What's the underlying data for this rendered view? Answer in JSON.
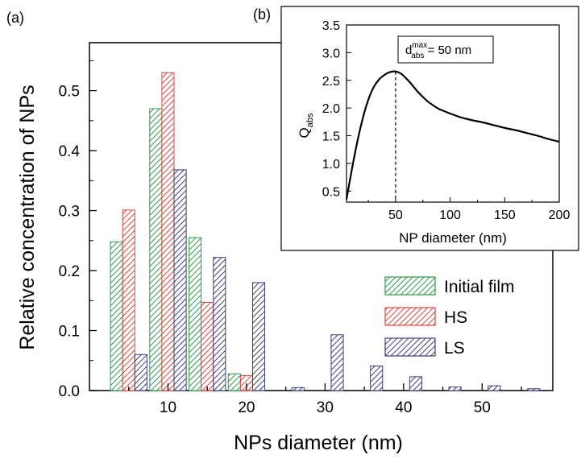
{
  "panel_labels": {
    "main": "(a)",
    "inset": "(b)"
  },
  "colors": {
    "initial": "#2e9b4e",
    "hs": "#e0443c",
    "ls": "#3b3f7a"
  },
  "chart_data": [
    {
      "type": "bar",
      "xlabel": "NPs diameter (nm)",
      "ylabel": "Relative concentration of NPs",
      "xlim": [
        0,
        59
      ],
      "ylim": [
        0,
        0.58
      ],
      "xticks": [
        10,
        20,
        30,
        40,
        50
      ],
      "yticks": [
        0.0,
        0.1,
        0.2,
        0.3,
        0.4,
        0.5
      ],
      "ytick_labels": [
        "0.0",
        "0.1",
        "0.2",
        "0.3",
        "0.4",
        "0.5"
      ],
      "legend_position": "right",
      "groups": [
        {
          "center": 5,
          "initial": 0.248,
          "hs": 0.301,
          "ls": 0.06
        },
        {
          "center": 10,
          "initial": 0.47,
          "hs": 0.53,
          "ls": 0.368
        },
        {
          "center": 15,
          "initial": 0.255,
          "hs": 0.147,
          "ls": 0.222
        },
        {
          "center": 20,
          "initial": 0.028,
          "hs": 0.025,
          "ls": 0.18
        },
        {
          "center": 25,
          "initial": 0.0,
          "hs": 0.0,
          "ls": 0.005
        },
        {
          "center": 30,
          "initial": 0.0,
          "hs": 0.0,
          "ls": 0.093
        },
        {
          "center": 35,
          "initial": 0.0,
          "hs": 0.0,
          "ls": 0.041
        },
        {
          "center": 40,
          "initial": 0.0,
          "hs": 0.0,
          "ls": 0.023
        },
        {
          "center": 45,
          "initial": 0.0,
          "hs": 0.0,
          "ls": 0.006
        },
        {
          "center": 50,
          "initial": 0.0,
          "hs": 0.0,
          "ls": 0.008
        },
        {
          "center": 55,
          "initial": 0.0,
          "hs": 0.0,
          "ls": 0.003
        }
      ],
      "series": [
        {
          "name": "Initial film",
          "key": "initial"
        },
        {
          "name": "HS",
          "key": "hs"
        },
        {
          "name": "LS",
          "key": "ls"
        }
      ]
    },
    {
      "type": "line",
      "xlabel": "NP diameter (nm)",
      "ylabel": "Q",
      "ylabel_sub": "abs",
      "xlim": [
        5,
        200
      ],
      "ylim": [
        0.3,
        3.5
      ],
      "xticks": [
        50,
        100,
        150,
        200
      ],
      "yticks": [
        0.5,
        1.0,
        1.5,
        2.0,
        2.5,
        3.0,
        3.5
      ],
      "ytick_labels": [
        "0.5",
        "1.0",
        "1.5",
        "2.0",
        "2.5",
        "3.0",
        "3.5"
      ],
      "annotation": {
        "symbol": "d",
        "sup": "max",
        "sub": "abs",
        "text": " = 50 nm",
        "marker_x": 50
      },
      "x": [
        5,
        10,
        15,
        20,
        25,
        30,
        35,
        40,
        45,
        50,
        55,
        60,
        65,
        70,
        75,
        80,
        85,
        90,
        95,
        100,
        110,
        120,
        130,
        140,
        150,
        160,
        170,
        180,
        190,
        200
      ],
      "y": [
        0.35,
        0.9,
        1.4,
        1.82,
        2.15,
        2.38,
        2.52,
        2.6,
        2.65,
        2.66,
        2.62,
        2.53,
        2.42,
        2.3,
        2.2,
        2.11,
        2.04,
        1.98,
        1.94,
        1.9,
        1.83,
        1.78,
        1.74,
        1.69,
        1.64,
        1.6,
        1.55,
        1.5,
        1.44,
        1.39
      ]
    }
  ]
}
